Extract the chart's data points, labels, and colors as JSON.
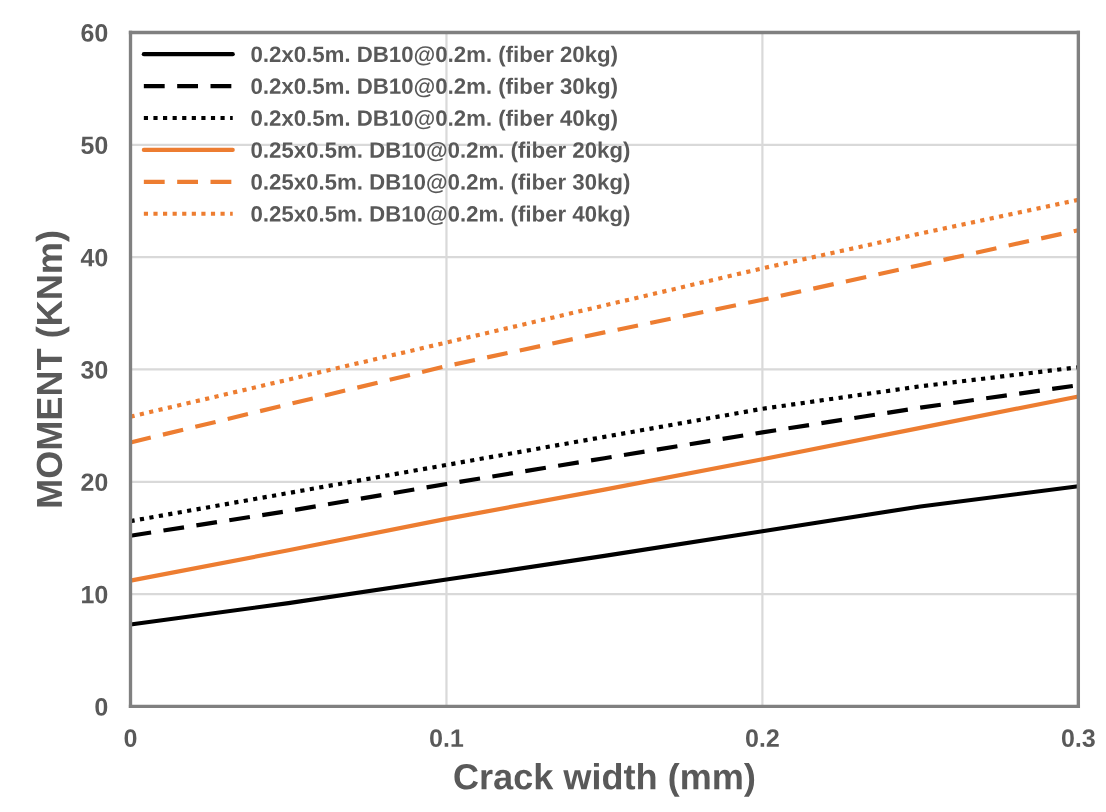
{
  "chart_data": {
    "type": "line",
    "xlabel": "Crack width (mm)",
    "ylabel": "MOMENT (KNm)",
    "x": [
      0,
      0.05,
      0.1,
      0.15,
      0.2,
      0.25,
      0.3
    ],
    "series": [
      {
        "name": "0.2x0.5m. DB10@0.2m. (fiber 20kg)",
        "color": "#000000",
        "line_style": "solid",
        "values": [
          7.3,
          9.2,
          11.3,
          13.4,
          15.6,
          17.8,
          19.6
        ]
      },
      {
        "name": "0.2x0.5m. DB10@0.2m. (fiber 30kg)",
        "color": "#000000",
        "line_style": "dashed",
        "values": [
          15.2,
          17.4,
          19.8,
          22.1,
          24.4,
          26.6,
          28.6
        ]
      },
      {
        "name": "0.2x0.5m. DB10@0.2m. (fiber 40kg)",
        "color": "#000000",
        "line_style": "dotted",
        "values": [
          16.5,
          19.0,
          21.5,
          24.0,
          26.5,
          28.5,
          30.2
        ]
      },
      {
        "name": "0.25x0.5m. DB10@0.2m. (fiber 20kg)",
        "color": "#ed7d31",
        "line_style": "solid",
        "values": [
          11.2,
          13.9,
          16.7,
          19.3,
          22.0,
          24.8,
          27.6
        ]
      },
      {
        "name": "0.25x0.5m. DB10@0.2m. (fiber 30kg)",
        "color": "#ed7d31",
        "line_style": "dashed",
        "values": [
          23.5,
          26.9,
          30.3,
          33.3,
          36.2,
          39.3,
          42.4
        ]
      },
      {
        "name": "0.25x0.5m. DB10@0.2m. (fiber 40kg)",
        "color": "#ed7d31",
        "line_style": "dotted",
        "values": [
          25.8,
          29.1,
          32.4,
          35.7,
          39.0,
          42.1,
          45.1
        ]
      }
    ],
    "xlim": [
      0,
      0.3
    ],
    "xticks": [
      {
        "value": 0,
        "label": "0"
      },
      0.1,
      0.2,
      0.3
    ],
    "ylim": [
      0,
      60
    ],
    "yticks": [
      0,
      10,
      20,
      30,
      40,
      50,
      60
    ],
    "grid": true,
    "legend": "top left",
    "marker": "none"
  }
}
